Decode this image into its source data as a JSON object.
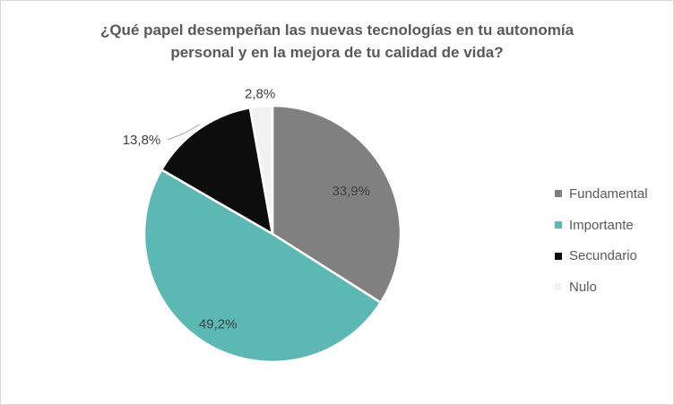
{
  "chart_data": {
    "type": "pie",
    "title": "¿Qué papel desempeñan las nuevas tecnologías en tu autonomía personal y en la mejora de tu calidad de vida?",
    "title_lines": [
      "¿Qué papel desempeñan las nuevas tecnologías en tu autonomía",
      "personal y en la mejora de tu calidad de vida?"
    ],
    "categories": [
      "Fundamental",
      "Importante",
      "Secundario",
      "Nulo"
    ],
    "values": [
      33.9,
      49.2,
      13.8,
      2.8
    ],
    "labels": [
      "33,9%",
      "49,2%",
      "13,8%",
      "2,8%"
    ],
    "colors": [
      "#808080",
      "#5BB8B2",
      "#0D0D0D",
      "#F2F2F2"
    ],
    "legend_position": "right"
  }
}
